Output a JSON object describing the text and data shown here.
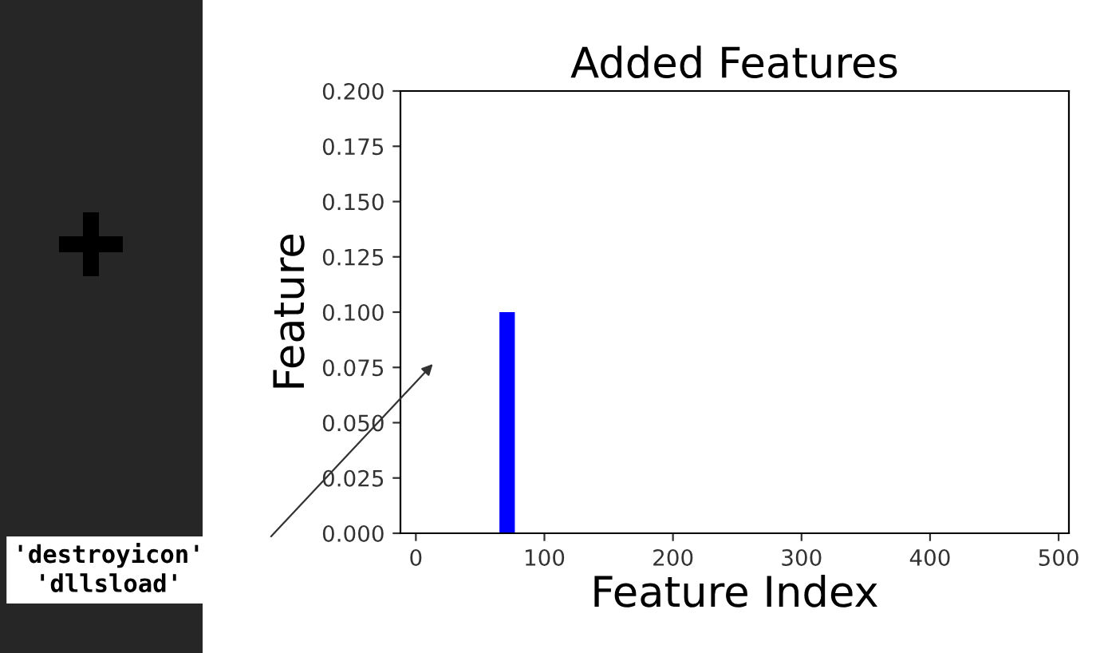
{
  "chart_data": {
    "type": "histogram",
    "title": "Added Features",
    "xlabel": "Feature Index",
    "ylabel": "Feature",
    "bins": [
      65,
      77
    ],
    "values": [
      0.1
    ],
    "color": "#0000ff",
    "xlim": [
      -12,
      508
    ],
    "xticks": [
      0,
      100,
      200,
      300,
      400,
      500
    ],
    "ylim": [
      0,
      0.2
    ],
    "yticks": [
      {
        "value": 0,
        "label": "0.000"
      },
      {
        "value": 0.025,
        "label": "0.025"
      },
      {
        "value": 0.05,
        "label": "0.050"
      },
      {
        "value": 0.075,
        "label": "0.075"
      },
      {
        "value": 0.1,
        "label": "0.100"
      },
      {
        "value": 0.125,
        "label": "0.125"
      },
      {
        "value": 0.15,
        "label": "0.150"
      },
      {
        "value": 0.175,
        "label": "0.175"
      },
      {
        "value": 0.2,
        "label": "0.200"
      }
    ],
    "grid": false,
    "annotations": [
      "'destroyicon'\n'dllsload'"
    ]
  }
}
